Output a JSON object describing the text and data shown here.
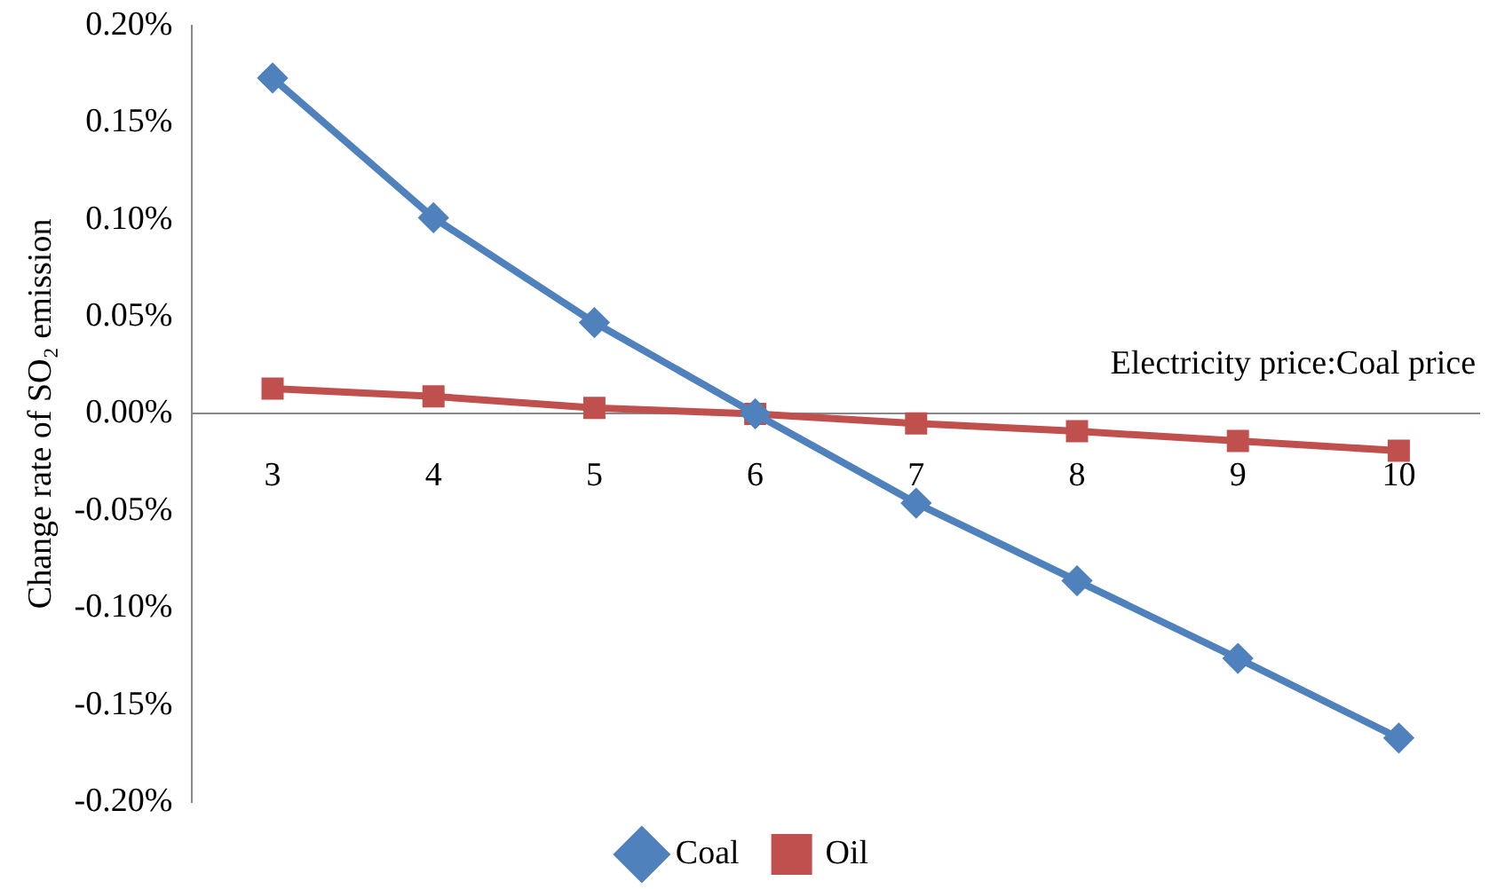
{
  "chart_data": {
    "type": "line",
    "ylabel": "Change rate of SO₂ emission",
    "xlabel": "Electricity price:Coal price",
    "categories": [
      "3",
      "4",
      "5",
      "6",
      "7",
      "8",
      "9",
      "10"
    ],
    "series": [
      {
        "name": "Coal",
        "color": "#4f81bd",
        "marker": "diamond",
        "values": [
          0.173,
          0.101,
          0.047,
          0,
          -0.046,
          -0.086,
          -0.126,
          -0.167
        ]
      },
      {
        "name": "Oil",
        "color": "#c0504d",
        "marker": "square",
        "values": [
          0.013,
          0.009,
          0.003,
          0,
          -0.005,
          -0.009,
          -0.014,
          -0.019
        ]
      }
    ],
    "ylim": [
      -0.2,
      0.2
    ],
    "yticks": [
      {
        "value": -0.2,
        "label": "-0.20%"
      },
      {
        "value": -0.15,
        "label": "-0.15%"
      },
      {
        "value": -0.1,
        "label": "-0.10%"
      },
      {
        "value": -0.05,
        "label": "-0.05%"
      },
      {
        "value": 0,
        "label": "0.00%"
      },
      {
        "value": 0.05,
        "label": "0.05%"
      },
      {
        "value": 0.1,
        "label": "0.10%"
      },
      {
        "value": 0.15,
        "label": "0.15%"
      },
      {
        "value": 0.2,
        "label": "0.20%"
      }
    ],
    "grid": false,
    "legend": "bottom"
  }
}
